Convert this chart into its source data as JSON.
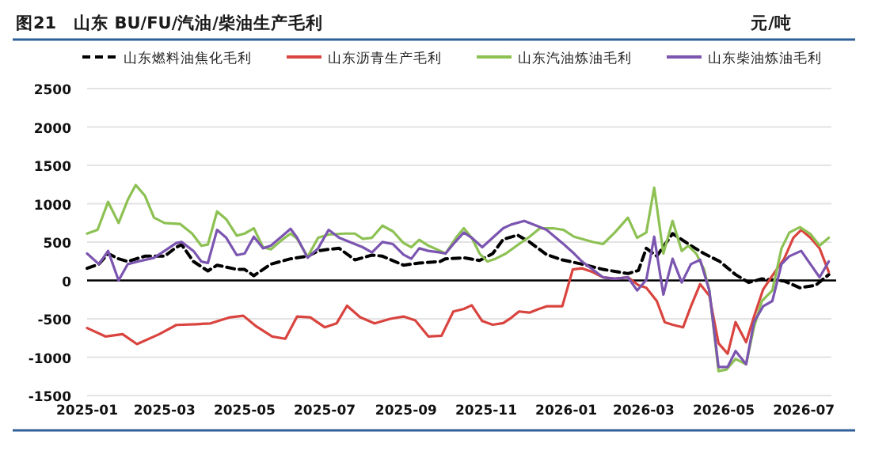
{
  "chart_data": {
    "type": "line",
    "title": "图21　山东 BU/FU/汽油/柴油生产毛利",
    "ylabel": "元/吨",
    "xlim": [
      "2025-01-01",
      "2026-07-22"
    ],
    "xticks": [
      "2025-01",
      "2025-03",
      "2025-05",
      "2025-07",
      "2025-09",
      "2025-11",
      "2026-01",
      "2026-03",
      "2026-05",
      "2026-07"
    ],
    "ylim": [
      -1500,
      2500
    ],
    "yticks": [
      -1500,
      -1000,
      -500,
      0,
      500,
      1000,
      1500,
      2000,
      2500
    ],
    "grid": "y",
    "legend": "top",
    "series": [
      {
        "name": "山东燃料油焦化毛利",
        "color": "#000000",
        "line_style": "dashed",
        "x": [
          "2025-01-01",
          "2025-01-10",
          "2025-01-17",
          "2025-01-25",
          "2025-02-01",
          "2025-02-14",
          "2025-03-01",
          "2025-03-10",
          "2025-03-14",
          "2025-03-23",
          "2025-04-03",
          "2025-04-10",
          "2025-04-25",
          "2025-05-01",
          "2025-05-08",
          "2025-05-21",
          "2025-06-05",
          "2025-06-18",
          "2025-06-26",
          "2025-07-04",
          "2025-07-12",
          "2025-07-24",
          "2025-08-06",
          "2025-08-14",
          "2025-08-30",
          "2025-09-11",
          "2025-09-27",
          "2025-10-01",
          "2025-10-15",
          "2025-10-27",
          "2025-11-06",
          "2025-11-14",
          "2025-11-25",
          "2025-12-04",
          "2025-12-17",
          "2025-12-29",
          "2026-01-13",
          "2026-01-29",
          "2026-02-17",
          "2026-02-25",
          "2026-03-03",
          "2026-03-11",
          "2026-03-23",
          "2026-04-06",
          "2026-04-16",
          "2026-04-28",
          "2026-05-10",
          "2026-05-20",
          "2026-05-30",
          "2026-06-16",
          "2026-06-28",
          "2026-07-10",
          "2026-07-20"
        ],
        "values": [
          158,
          213,
          350,
          282,
          247,
          316,
          316,
          433,
          467,
          247,
          124,
          199,
          144,
          144,
          62,
          213,
          282,
          316,
          385,
          405,
          419,
          268,
          330,
          316,
          199,
          227,
          247,
          282,
          295,
          261,
          350,
          536,
          591,
          502,
          337,
          268,
          213,
          144,
          89,
          131,
          419,
          316,
          611,
          453,
          350,
          247,
          76,
          -27,
          21,
          -7,
          -96,
          -62,
          76
        ]
      },
      {
        "name": "山东沥青生产毛利",
        "color": "#d9443f",
        "x": [
          "2025-01-01",
          "2025-01-15",
          "2025-01-28",
          "2025-02-08",
          "2025-02-25",
          "2025-03-10",
          "2025-03-25",
          "2025-04-05",
          "2025-04-20",
          "2025-04-30",
          "2025-05-10",
          "2025-05-22",
          "2025-06-01",
          "2025-06-10",
          "2025-06-20",
          "2025-07-01",
          "2025-07-10",
          "2025-07-18",
          "2025-07-28",
          "2025-08-08",
          "2025-08-20",
          "2025-08-30",
          "2025-09-08",
          "2025-09-18",
          "2025-09-28",
          "2025-10-07",
          "2025-10-15",
          "2025-10-21",
          "2025-10-29",
          "2025-11-06",
          "2025-11-14",
          "2025-11-20",
          "2025-11-26",
          "2025-12-04",
          "2025-12-10",
          "2025-12-17",
          "2025-12-29",
          "2026-01-06",
          "2026-01-13",
          "2026-01-21",
          "2026-01-29",
          "2026-02-07",
          "2026-02-17",
          "2026-02-25",
          "2026-03-03",
          "2026-03-11",
          "2026-03-17",
          "2026-03-23",
          "2026-03-31",
          "2026-04-06",
          "2026-04-13",
          "2026-04-20",
          "2026-04-27",
          "2026-05-04",
          "2026-05-10",
          "2026-05-18",
          "2026-05-24",
          "2026-05-31",
          "2026-06-07",
          "2026-06-16",
          "2026-06-23",
          "2026-06-29",
          "2026-07-06",
          "2026-07-13",
          "2026-07-20"
        ],
        "values": [
          -620,
          -730,
          -700,
          -830,
          -700,
          -580,
          -570,
          -560,
          -480,
          -460,
          -600,
          -730,
          -760,
          -470,
          -480,
          -610,
          -560,
          -330,
          -480,
          -560,
          -500,
          -470,
          -520,
          -730,
          -720,
          -405,
          -371,
          -323,
          -529,
          -577,
          -556,
          -488,
          -405,
          -419,
          -378,
          -337,
          -337,
          144,
          158,
          110,
          41,
          21,
          41,
          -62,
          -96,
          -268,
          -543,
          -577,
          -611,
          -337,
          -48,
          -199,
          -818,
          -955,
          -543,
          -804,
          -474,
          -117,
          62,
          282,
          556,
          659,
          556,
          419,
          110
        ]
      },
      {
        "name": "山东汽油炼油毛利",
        "color": "#8dc153",
        "x": [
          "2025-01-01",
          "2025-01-09",
          "2025-01-17",
          "2025-01-25",
          "2025-02-01",
          "2025-02-07",
          "2025-02-14",
          "2025-02-21",
          "2025-03-01",
          "2025-03-13",
          "2025-03-22",
          "2025-03-29",
          "2025-04-03",
          "2025-04-10",
          "2025-04-17",
          "2025-04-25",
          "2025-05-01",
          "2025-05-08",
          "2025-05-15",
          "2025-05-21",
          "2025-05-29",
          "2025-06-05",
          "2025-06-10",
          "2025-06-18",
          "2025-06-26",
          "2025-07-04",
          "2025-07-16",
          "2025-07-24",
          "2025-07-30",
          "2025-08-06",
          "2025-08-14",
          "2025-08-22",
          "2025-08-30",
          "2025-09-05",
          "2025-09-11",
          "2025-09-18",
          "2025-09-27",
          "2025-10-01",
          "2025-10-09",
          "2025-10-15",
          "2025-10-21",
          "2025-10-27",
          "2025-11-02",
          "2025-11-08",
          "2025-11-16",
          "2025-11-26",
          "2025-12-04",
          "2025-12-12",
          "2025-12-22",
          "2025-12-30",
          "2026-01-07",
          "2026-01-21",
          "2026-01-29",
          "2026-02-07",
          "2026-02-17",
          "2026-02-24",
          "2026-03-03",
          "2026-03-09",
          "2026-03-16",
          "2026-03-23",
          "2026-03-30",
          "2026-04-04",
          "2026-04-10",
          "2026-04-16",
          "2026-04-20",
          "2026-04-27",
          "2026-05-03",
          "2026-05-10",
          "2026-05-18",
          "2026-05-24",
          "2026-05-30",
          "2026-06-07",
          "2026-06-14",
          "2026-06-20",
          "2026-06-28",
          "2026-07-06",
          "2026-07-13",
          "2026-07-20"
        ],
        "values": [
          611,
          660,
          1024,
          749,
          1051,
          1243,
          1106,
          818,
          749,
          735,
          611,
          453,
          467,
          900,
          797,
          584,
          611,
          680,
          433,
          405,
          522,
          611,
          543,
          309,
          556,
          598,
          611,
          611,
          543,
          556,
          714,
          639,
          488,
          433,
          529,
          453,
          385,
          350,
          556,
          680,
          556,
          350,
          247,
          282,
          350,
          474,
          570,
          680,
          680,
          659,
          570,
          502,
          474,
          625,
          818,
          556,
          625,
          1209,
          350,
          776,
          385,
          453,
          350,
          144,
          -131,
          -1182,
          -1161,
          -1024,
          -1092,
          -611,
          -268,
          -131,
          419,
          625,
          694,
          605,
          453,
          556
        ]
      },
      {
        "name": "山东柴油炼油毛利",
        "color": "#7b55b0",
        "x": [
          "2025-01-01",
          "2025-01-10",
          "2025-01-17",
          "2025-01-25",
          "2025-02-01",
          "2025-02-09",
          "2025-02-21",
          "2025-03-01",
          "2025-03-10",
          "2025-03-14",
          "2025-03-23",
          "2025-03-29",
          "2025-04-03",
          "2025-04-10",
          "2025-04-17",
          "2025-04-25",
          "2025-05-01",
          "2025-05-08",
          "2025-05-15",
          "2025-05-21",
          "2025-05-29",
          "2025-06-05",
          "2025-06-10",
          "2025-06-18",
          "2025-06-26",
          "2025-07-04",
          "2025-07-12",
          "2025-07-24",
          "2025-07-30",
          "2025-08-06",
          "2025-08-14",
          "2025-08-22",
          "2025-08-30",
          "2025-09-05",
          "2025-09-11",
          "2025-09-18",
          "2025-09-27",
          "2025-10-01",
          "2025-10-07",
          "2025-10-15",
          "2025-10-21",
          "2025-10-29",
          "2025-11-06",
          "2025-11-14",
          "2025-11-20",
          "2025-11-30",
          "2025-12-10",
          "2025-12-17",
          "2025-12-29",
          "2026-01-07",
          "2026-01-13",
          "2026-01-21",
          "2026-01-29",
          "2026-02-07",
          "2026-02-17",
          "2026-02-24",
          "2026-03-03",
          "2026-03-09",
          "2026-03-16",
          "2026-03-23",
          "2026-03-30",
          "2026-04-06",
          "2026-04-13",
          "2026-04-20",
          "2026-04-27",
          "2026-05-04",
          "2026-05-10",
          "2026-05-18",
          "2026-05-24",
          "2026-05-31",
          "2026-06-07",
          "2026-06-14",
          "2026-06-20",
          "2026-06-29",
          "2026-07-06",
          "2026-07-13",
          "2026-07-20"
        ],
        "values": [
          350,
          213,
          385,
          0,
          213,
          247,
          295,
          385,
          488,
          501,
          385,
          247,
          227,
          659,
          556,
          330,
          350,
          570,
          419,
          453,
          570,
          673,
          556,
          295,
          419,
          659,
          556,
          474,
          433,
          364,
          501,
          474,
          337,
          282,
          419,
          385,
          364,
          350,
          474,
          625,
          556,
          433,
          556,
          680,
          728,
          776,
          708,
          659,
          488,
          350,
          247,
          144,
          41,
          21,
          41,
          -131,
          7,
          570,
          -185,
          282,
          -27,
          213,
          268,
          -131,
          -1127,
          -1127,
          -920,
          -1092,
          -543,
          -337,
          -268,
          213,
          316,
          385,
          213,
          41,
          247
        ]
      }
    ]
  }
}
